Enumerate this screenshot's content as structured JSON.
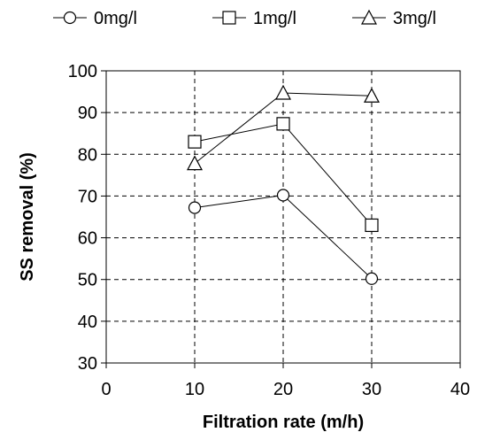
{
  "chart_data": {
    "type": "line",
    "title": "",
    "xlabel": "Filtration rate (m/h)",
    "ylabel": "SS removal (%)",
    "xlim": [
      0,
      40
    ],
    "ylim": [
      30,
      100
    ],
    "xticks": [
      0,
      10,
      20,
      30,
      40
    ],
    "yticks": [
      30,
      40,
      50,
      60,
      70,
      80,
      90,
      100
    ],
    "xtick_labels": [
      "0",
      "10",
      "20",
      "30",
      "40"
    ],
    "ytick_labels": [
      "30",
      "40",
      "50",
      "60",
      "70",
      "80",
      "90",
      "100"
    ],
    "grid": "dashed",
    "legend_position": "top",
    "colors": {
      "line": "#000000",
      "marker_fill": "#ffffff",
      "grid": "#000000"
    },
    "x": [
      10,
      20,
      30
    ],
    "series": [
      {
        "name": "0mg/l",
        "marker": "circle",
        "values": [
          67.2,
          70.2,
          50.2
        ]
      },
      {
        "name": "1mg/l",
        "marker": "square",
        "values": [
          83.0,
          87.3,
          63.0
        ]
      },
      {
        "name": "3mg/l",
        "marker": "triangle",
        "values": [
          77.8,
          94.7,
          94.0
        ]
      }
    ]
  }
}
